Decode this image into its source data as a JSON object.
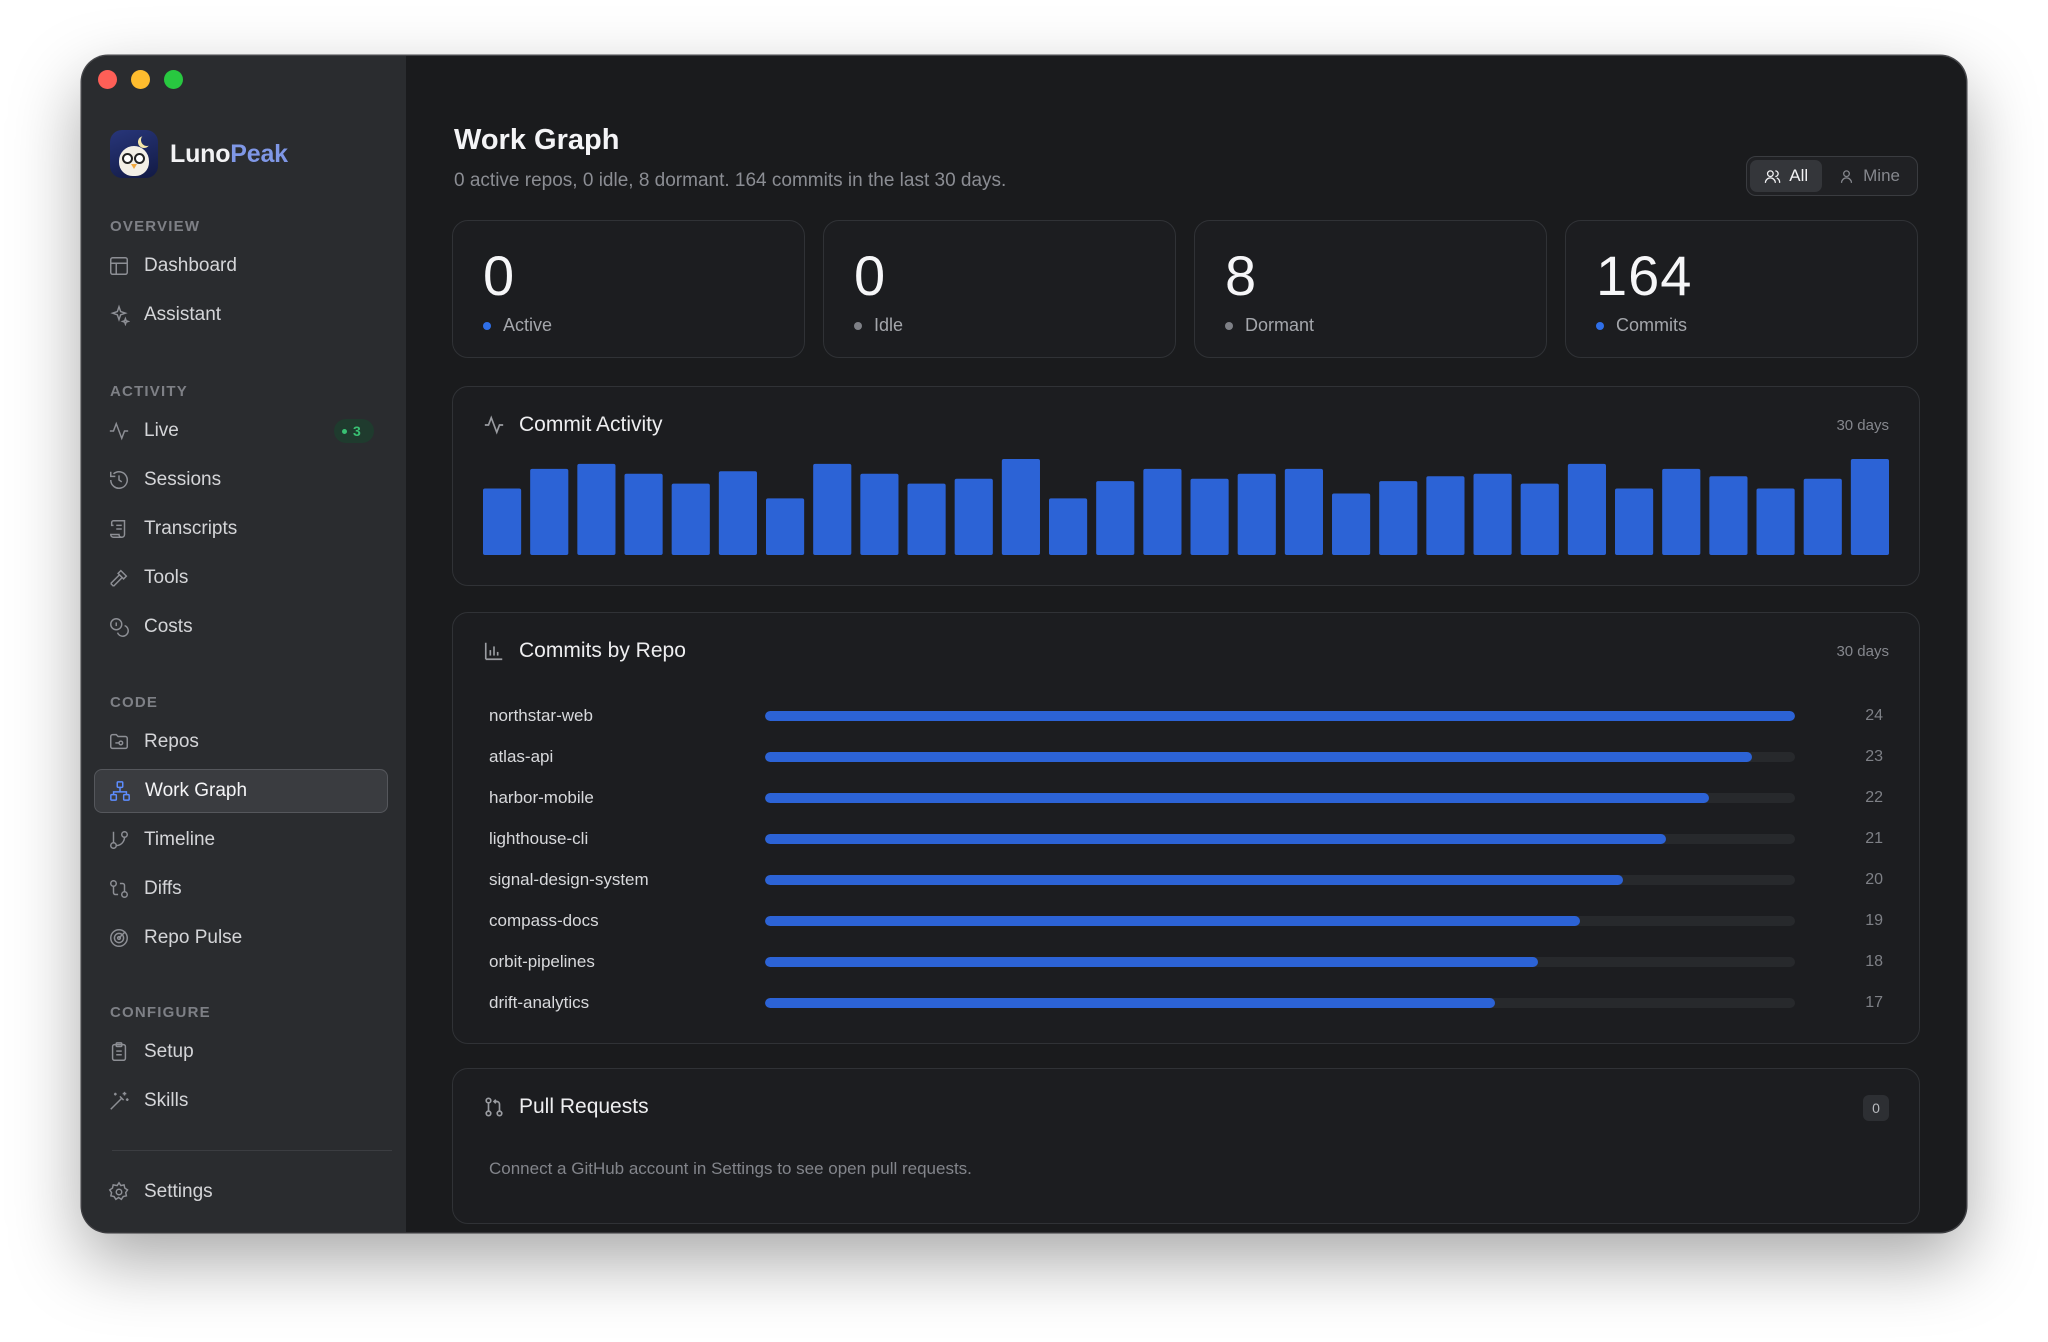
{
  "window": {
    "traffic_lights": [
      "#fe5f57",
      "#febc2e",
      "#28c840"
    ]
  },
  "brand": {
    "name_part1": "Luno",
    "name_part2": "Peak",
    "accent": "#7f97e6"
  },
  "sidebar": {
    "sections": [
      {
        "label": "OVERVIEW",
        "items": [
          {
            "label": "Dashboard",
            "icon": "layout-icon"
          },
          {
            "label": "Assistant",
            "icon": "sparkles-icon"
          }
        ]
      },
      {
        "label": "ACTIVITY",
        "items": [
          {
            "label": "Live",
            "icon": "pulse-icon",
            "badge": "3"
          },
          {
            "label": "Sessions",
            "icon": "history-icon"
          },
          {
            "label": "Transcripts",
            "icon": "scroll-icon"
          },
          {
            "label": "Tools",
            "icon": "hammer-icon"
          },
          {
            "label": "Costs",
            "icon": "coins-icon"
          }
        ]
      },
      {
        "label": "CODE",
        "items": [
          {
            "label": "Repos",
            "icon": "folder-git-icon"
          },
          {
            "label": "Work Graph",
            "icon": "network-icon",
            "active": true
          },
          {
            "label": "Timeline",
            "icon": "git-branch-icon"
          },
          {
            "label": "Diffs",
            "icon": "git-compare-icon"
          },
          {
            "label": "Repo Pulse",
            "icon": "radar-icon"
          }
        ]
      },
      {
        "label": "CONFIGURE",
        "items": [
          {
            "label": "Setup",
            "icon": "clipboard-icon"
          },
          {
            "label": "Skills",
            "icon": "wand-icon"
          }
        ]
      }
    ],
    "settings_label": "Settings"
  },
  "header": {
    "title": "Work Graph",
    "subtitle": "0 active repos, 0 idle, 8 dormant. 164 commits in the last 30 days.",
    "filter": {
      "all_label": "All",
      "mine_label": "Mine",
      "selected": "All"
    }
  },
  "stats": [
    {
      "value": "0",
      "label": "Active",
      "dot": "#2f6fe8"
    },
    {
      "value": "0",
      "label": "Idle",
      "dot": "#7e8086"
    },
    {
      "value": "8",
      "label": "Dormant",
      "dot": "#7e8086"
    },
    {
      "value": "164",
      "label": "Commits",
      "dot": "#2f6fe8"
    }
  ],
  "commit_activity": {
    "title": "Commit Activity",
    "range": "30 days",
    "bar_color": "#2c63d6",
    "chart_data": {
      "type": "bar",
      "values": [
        13.5,
        17.5,
        18.5,
        16.5,
        14.5,
        17,
        11.5,
        18.5,
        16.5,
        14.5,
        15.5,
        19.5,
        11.5,
        15,
        17.5,
        15.5,
        16.5,
        17.5,
        12.5,
        15,
        16,
        16.5,
        14.5,
        18.5,
        13.5,
        17.5,
        16,
        13.5,
        15.5,
        19.5
      ]
    }
  },
  "commits_by_repo": {
    "title": "Commits by Repo",
    "range": "30 days",
    "max": 24,
    "chart_data": {
      "type": "bar",
      "orientation": "horizontal",
      "categories": [
        "northstar-web",
        "atlas-api",
        "harbor-mobile",
        "lighthouse-cli",
        "signal-design-system",
        "compass-docs",
        "orbit-pipelines",
        "drift-analytics"
      ],
      "values": [
        24,
        23,
        22,
        21,
        20,
        19,
        18,
        17
      ]
    }
  },
  "pull_requests": {
    "title": "Pull Requests",
    "count": "0",
    "empty_message": "Connect a GitHub account in Settings to see open pull requests."
  }
}
